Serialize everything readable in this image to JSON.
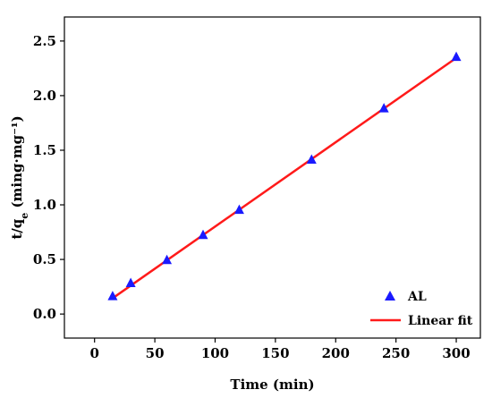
{
  "chart_data": {
    "type": "scatter",
    "xlabel": "Time (min)",
    "ylabel": {
      "base": "t/q",
      "sub": "e",
      "units": " (ming·mg⁻¹)"
    },
    "xlim": [
      -25,
      320
    ],
    "ylim": [
      -0.22,
      2.72
    ],
    "xticks": [
      0,
      50,
      100,
      150,
      200,
      250,
      300
    ],
    "yticks": [
      0.0,
      0.5,
      1.0,
      1.5,
      2.0,
      2.5
    ],
    "ytick_labels": [
      "0.0",
      "0.5",
      "1.0",
      "1.5",
      "2.0",
      "2.5"
    ],
    "grid": false,
    "legend_position": "bottom-right",
    "series": [
      {
        "name": "AL",
        "kind": "scatter",
        "marker": "triangle",
        "color": "#1a1aff",
        "x": [
          15,
          30,
          60,
          90,
          120,
          180,
          240,
          300
        ],
        "y": [
          0.16,
          0.28,
          0.49,
          0.72,
          0.95,
          1.41,
          1.88,
          2.35
        ]
      },
      {
        "name": "Linear fit",
        "kind": "line",
        "color": "#ff1a1a",
        "x": [
          15,
          300
        ],
        "y": [
          0.145,
          2.345
        ]
      }
    ]
  }
}
